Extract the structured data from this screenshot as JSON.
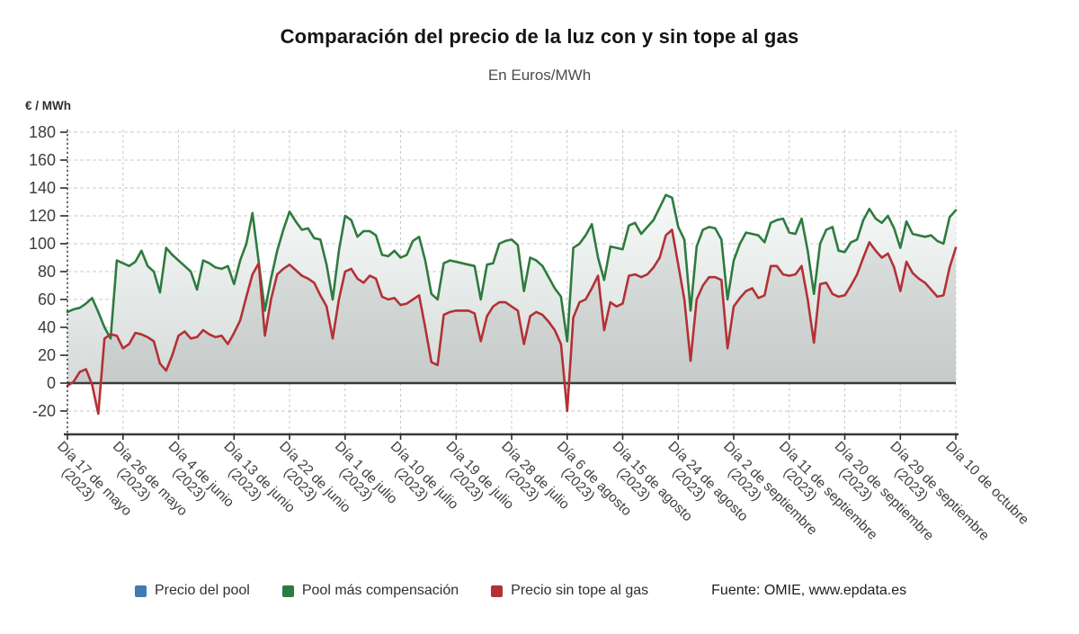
{
  "title": "Comparación del precio de la luz con y sin tope al gas",
  "subtitle": "En Euros/MWh",
  "y_axis_title": "€ / MWh",
  "source": "Fuente: OMIE, www.epdata.es",
  "legend": {
    "items": [
      {
        "label": "Precio del pool",
        "color": "#3e7cb1"
      },
      {
        "label": "Pool más compensación",
        "color": "#2e7b3f"
      },
      {
        "label": "Precio sin tope al gas",
        "color": "#b23135"
      }
    ]
  },
  "chart_data": {
    "type": "line",
    "grid": true,
    "legend_position": "bottom",
    "y_ticks": [
      180,
      160,
      140,
      120,
      100,
      80,
      60,
      40,
      20,
      0,
      -20
    ],
    "y_tick_range": [
      -20,
      180
    ],
    "x_tick_step": 9,
    "x_tick_labels": [
      {
        "label": "Día 17 de mayo",
        "year": "(2023)"
      },
      {
        "label": "Día 26 de mayo",
        "year": "(2023)"
      },
      {
        "label": "Día 4 de junio",
        "year": "(2023)"
      },
      {
        "label": "Día 13 de junio",
        "year": "(2023)"
      },
      {
        "label": "Día 22 de junio",
        "year": "(2023)"
      },
      {
        "label": "Día 1 de julio",
        "year": "(2023)"
      },
      {
        "label": "Día 10 de julio",
        "year": "(2023)"
      },
      {
        "label": "Día 19 de julio",
        "year": "(2023)"
      },
      {
        "label": "Día 28 de julio",
        "year": "(2023)"
      },
      {
        "label": "Día 6 de agosto",
        "year": "(2023)"
      },
      {
        "label": "Día 15 de agosto",
        "year": "(2023)"
      },
      {
        "label": "Día 24 de agosto",
        "year": "(2023)"
      },
      {
        "label": "Día 2 de septiembre",
        "year": "(2023)"
      },
      {
        "label": "Día 11 de septiembre",
        "year": "(2023)"
      },
      {
        "label": "Día 20 de septiembre",
        "year": "(2023)"
      },
      {
        "label": "Día 29 de septiembre",
        "year": "(2023)"
      },
      {
        "label": "Día 10 de octubre",
        "year": ""
      }
    ],
    "series": [
      {
        "name": "Precio del pool",
        "color": "#3e7cb1",
        "visible": false,
        "values": []
      },
      {
        "name": "Pool más compensación",
        "color": "#2e7b3f",
        "visible": true,
        "values": [
          51,
          53,
          54,
          57,
          61,
          51,
          40,
          32,
          88,
          86,
          84,
          87,
          95,
          84,
          80,
          65,
          97,
          92,
          88,
          84,
          80,
          67,
          88,
          86,
          83,
          82,
          84,
          71,
          88,
          100,
          122,
          87,
          52,
          75,
          95,
          110,
          123,
          116,
          110,
          111,
          104,
          103,
          85,
          60,
          95,
          120,
          117,
          105,
          109,
          109,
          106,
          92,
          91,
          95,
          90,
          92,
          102,
          105,
          88,
          64,
          60,
          86,
          88,
          87,
          86,
          85,
          84,
          60,
          85,
          86,
          100,
          102,
          103,
          99,
          66,
          90,
          88,
          84,
          76,
          68,
          62,
          30,
          97,
          100,
          106,
          114,
          90,
          74,
          98,
          97,
          96,
          113,
          115,
          107,
          112,
          117,
          126,
          135,
          133,
          112,
          103,
          52,
          98,
          110,
          112,
          111,
          103,
          60,
          88,
          100,
          108,
          107,
          106,
          101,
          115,
          117,
          118,
          108,
          107,
          118,
          95,
          64,
          100,
          110,
          112,
          95,
          94,
          101,
          103,
          117,
          125,
          118,
          115,
          120,
          111,
          97,
          116,
          107,
          106,
          105,
          106,
          102,
          100,
          119,
          124
        ]
      },
      {
        "name": "Precio sin tope al gas",
        "color": "#b23135",
        "visible": true,
        "values": [
          -2,
          1,
          8,
          10,
          -1,
          -22,
          32,
          35,
          34,
          25,
          28,
          36,
          35,
          33,
          30,
          14,
          9,
          20,
          34,
          37,
          32,
          33,
          38,
          35,
          33,
          34,
          28,
          36,
          45,
          62,
          78,
          86,
          34,
          60,
          78,
          82,
          85,
          81,
          77,
          75,
          72,
          63,
          55,
          32,
          60,
          80,
          82,
          75,
          72,
          77,
          75,
          62,
          60,
          61,
          56,
          57,
          60,
          63,
          40,
          15,
          13,
          49,
          51,
          52,
          52,
          52,
          50,
          30,
          48,
          55,
          58,
          58,
          55,
          52,
          28,
          48,
          51,
          49,
          44,
          38,
          28,
          -20,
          47,
          58,
          60,
          68,
          77,
          38,
          58,
          55,
          57,
          77,
          78,
          76,
          78,
          83,
          90,
          106,
          110,
          85,
          60,
          16,
          60,
          70,
          76,
          76,
          74,
          25,
          55,
          61,
          66,
          68,
          61,
          63,
          84,
          84,
          78,
          77,
          78,
          84,
          60,
          29,
          71,
          72,
          64,
          62,
          63,
          70,
          78,
          90,
          101,
          95,
          90,
          93,
          83,
          66,
          87,
          79,
          75,
          72,
          67,
          62,
          63,
          83,
          97
        ]
      }
    ]
  }
}
